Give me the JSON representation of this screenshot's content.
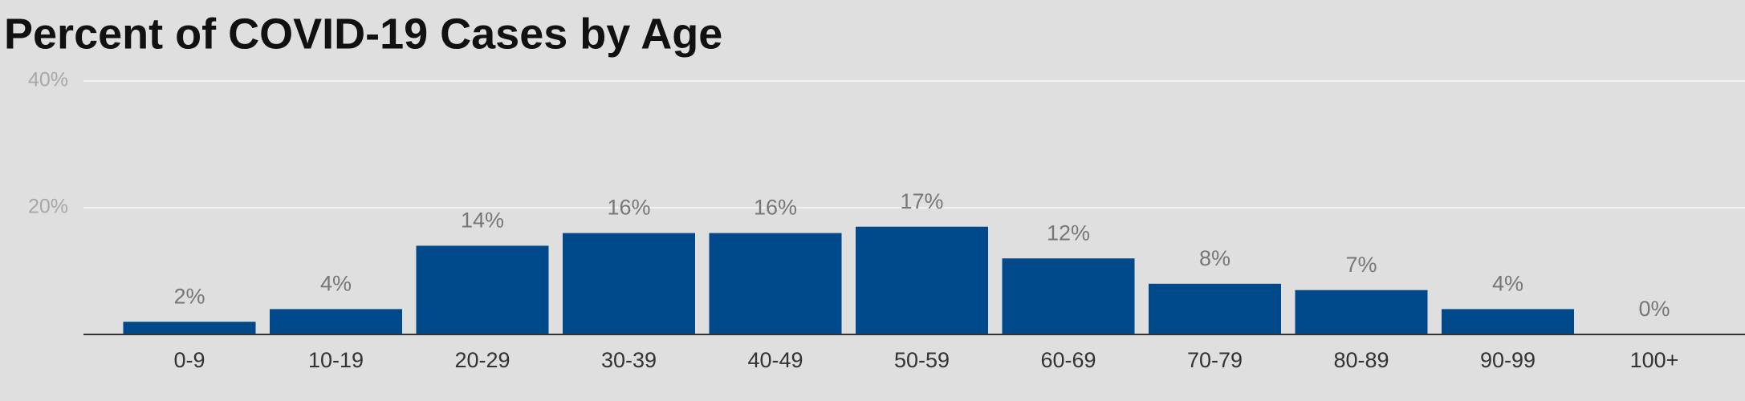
{
  "chart_data": {
    "type": "bar",
    "title": "Percent of COVID-19 Cases by Age",
    "categories": [
      "0-9",
      "10-19",
      "20-29",
      "30-39",
      "40-49",
      "50-59",
      "60-69",
      "70-79",
      "80-89",
      "90-99",
      "100+"
    ],
    "values": [
      2,
      4,
      14,
      16,
      16,
      17,
      12,
      8,
      7,
      4,
      0
    ],
    "value_labels": [
      "2%",
      "4%",
      "14%",
      "16%",
      "16%",
      "17%",
      "12%",
      "8%",
      "7%",
      "4%",
      "0%"
    ],
    "color": "#004a8c",
    "ylim": [
      0,
      40
    ],
    "yticks": [
      {
        "value": 20,
        "label": "20%"
      },
      {
        "value": 40,
        "label": "40%"
      }
    ],
    "grid": true
  }
}
